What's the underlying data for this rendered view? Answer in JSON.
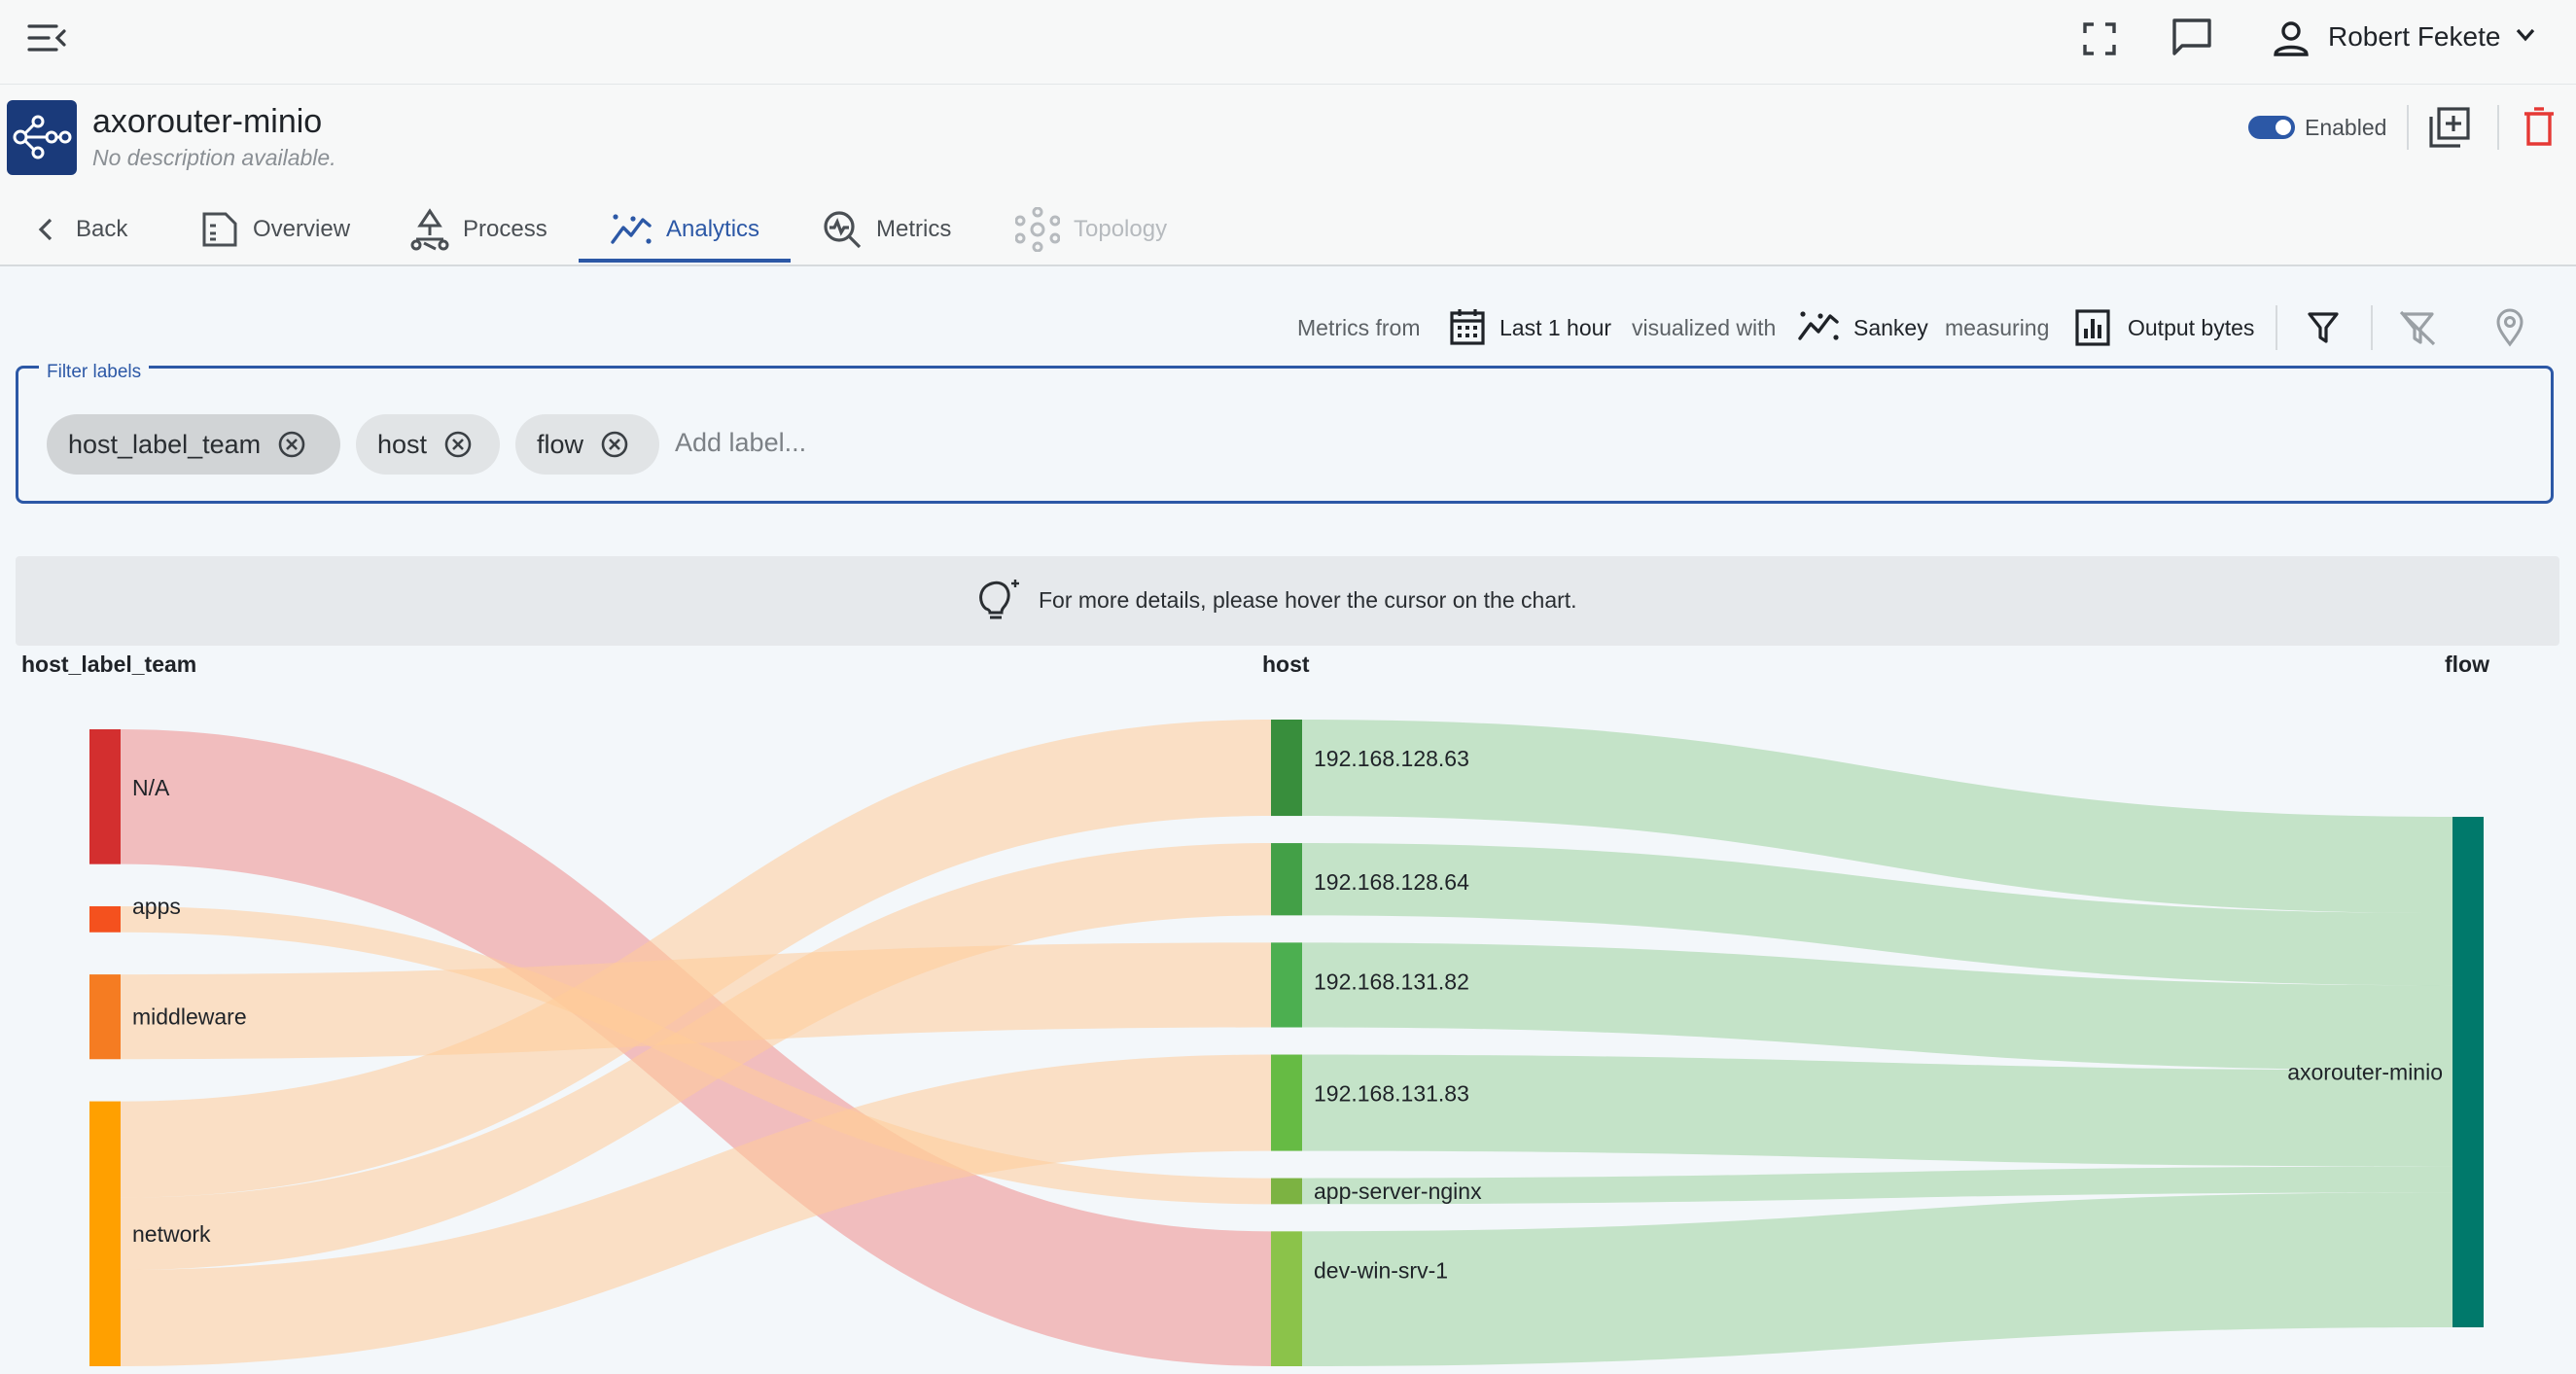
{
  "topbar": {
    "menu_icon": "menu-collapse-icon",
    "fullscreen_icon": "fullscreen-icon",
    "chat_icon": "chat-icon",
    "user_icon": "user-icon",
    "user_name": "Robert Fekete",
    "chevron_icon": "chevron-down-icon"
  },
  "header": {
    "title": "axorouter-minio",
    "description": "No description available.",
    "status_label": "Enabled",
    "status_enabled": true,
    "accent_color": "#2c58a6",
    "delete_color": "#e53935"
  },
  "tabs": [
    {
      "label": "Back",
      "icon": "chevron-left-icon",
      "state": "normal"
    },
    {
      "label": "Overview",
      "icon": "document-icon",
      "state": "normal"
    },
    {
      "label": "Process",
      "icon": "process-icon",
      "state": "normal"
    },
    {
      "label": "Analytics",
      "icon": "analytics-icon",
      "state": "active"
    },
    {
      "label": "Metrics",
      "icon": "metrics-icon",
      "state": "normal"
    },
    {
      "label": "Topology",
      "icon": "topology-icon",
      "state": "disabled"
    }
  ],
  "controls": {
    "metrics_from_label": "Metrics from",
    "time_range": "Last 1 hour",
    "visualized_label": "visualized with",
    "visualization": "Sankey",
    "measuring_label": "measuring",
    "measure": "Output bytes"
  },
  "filter": {
    "legend": "Filter labels",
    "chips": [
      "host_label_team",
      "host",
      "flow"
    ],
    "placeholder": "Add label..."
  },
  "hint": {
    "text": "For more details, please hover the cursor on the chart."
  },
  "chart_data": {
    "type": "sankey",
    "columns": [
      "host_label_team",
      "host",
      "flow"
    ],
    "unit": "Output bytes",
    "nodes": [
      {
        "name": "N/A",
        "column": 0,
        "color": "#d32f2f"
      },
      {
        "name": "apps",
        "column": 0,
        "color": "#f4511e"
      },
      {
        "name": "middleware",
        "column": 0,
        "color": "#f57c22"
      },
      {
        "name": "network",
        "column": 0,
        "color": "#ffa000"
      },
      {
        "name": "192.168.128.63",
        "column": 1,
        "color": "#388e3c"
      },
      {
        "name": "192.168.128.64",
        "column": 1,
        "color": "#43a047"
      },
      {
        "name": "192.168.131.82",
        "column": 1,
        "color": "#4caf50"
      },
      {
        "name": "192.168.131.83",
        "column": 1,
        "color": "#66bb44"
      },
      {
        "name": "app-server-nginx",
        "column": 1,
        "color": "#7cb342"
      },
      {
        "name": "dev-win-srv-1",
        "column": 1,
        "color": "#8bc34a"
      },
      {
        "name": "axorouter-minio",
        "column": 2,
        "color": "#00796b"
      }
    ],
    "links": [
      {
        "source": "N/A",
        "target": "dev-win-srv-1",
        "value": 14
      },
      {
        "source": "apps",
        "target": "app-server-nginx",
        "value": 2.7
      },
      {
        "source": "middleware",
        "target": "192.168.131.82",
        "value": 8.8
      },
      {
        "source": "network",
        "target": "192.168.128.63",
        "value": 10
      },
      {
        "source": "network",
        "target": "192.168.128.64",
        "value": 7.5
      },
      {
        "source": "network",
        "target": "192.168.131.83",
        "value": 10
      },
      {
        "source": "192.168.128.63",
        "target": "axorouter-minio",
        "value": 10
      },
      {
        "source": "192.168.128.64",
        "target": "axorouter-minio",
        "value": 7.5
      },
      {
        "source": "192.168.131.82",
        "target": "axorouter-minio",
        "value": 8.8
      },
      {
        "source": "192.168.131.83",
        "target": "axorouter-minio",
        "value": 10
      },
      {
        "source": "app-server-nginx",
        "target": "axorouter-minio",
        "value": 2.7
      },
      {
        "source": "dev-win-srv-1",
        "target": "axorouter-minio",
        "value": 14
      }
    ]
  }
}
